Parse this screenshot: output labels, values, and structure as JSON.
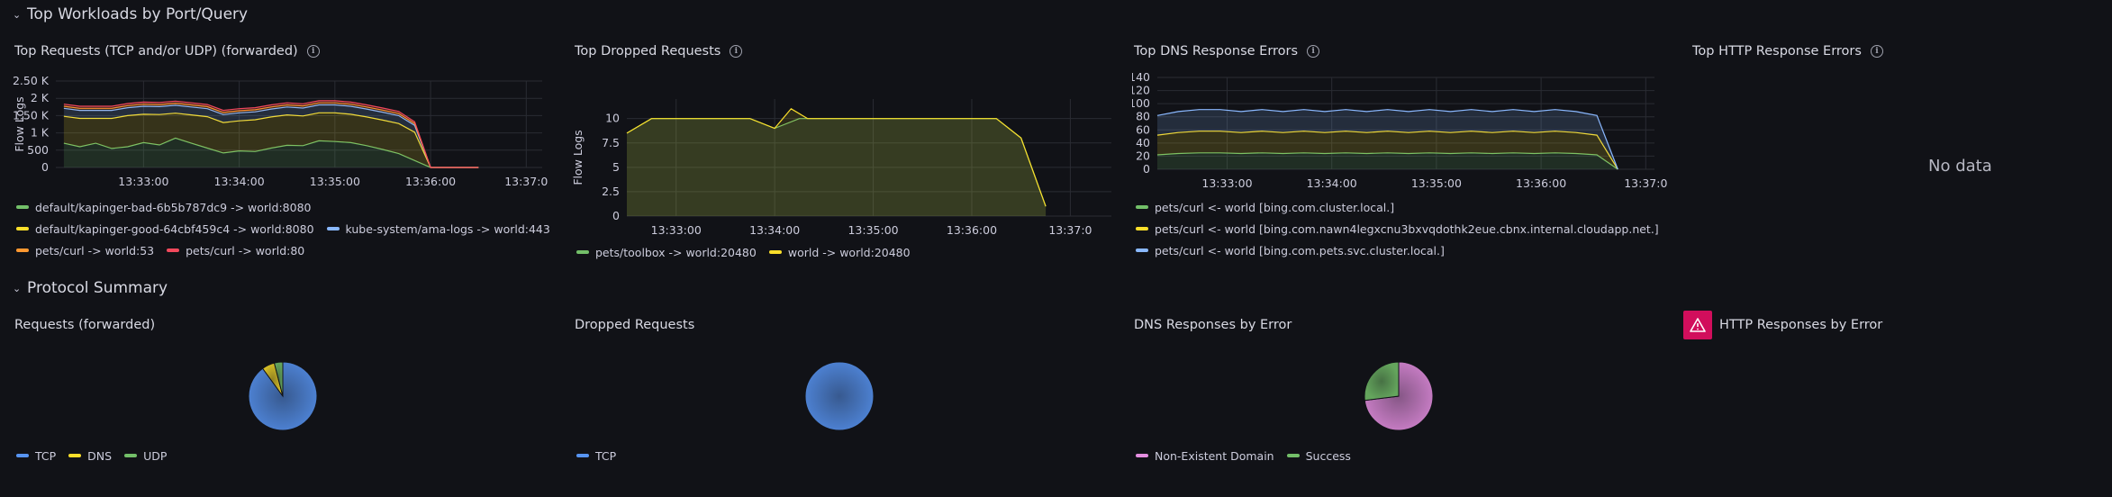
{
  "rows": [
    {
      "title": "Top Workloads by Port/Query"
    },
    {
      "title": "Protocol Summary"
    }
  ],
  "panels": {
    "top_requests": {
      "title": "Top Requests (TCP and/or UDP) (forwarded)",
      "ylabel": "Flow Logs",
      "yticks": [
        "2.50 K",
        "2 K",
        "1.50 K",
        "1 K",
        "500",
        "0"
      ],
      "xticks": [
        "13:33:00",
        "13:34:00",
        "13:35:00",
        "13:36:00",
        "13:37:0"
      ],
      "legend": [
        {
          "label": "default/kapinger-bad-6b5b787dc9 -> world:8080",
          "color": "#73bf69"
        },
        {
          "label": "default/kapinger-good-64cbf459c4 -> world:8080",
          "color": "#fade2a"
        },
        {
          "label": "kube-system/ama-logs -> world:443",
          "color": "#8ab8ff"
        },
        {
          "label": "pets/curl -> world:53",
          "color": "#ff9830"
        },
        {
          "label": "pets/curl -> world:80",
          "color": "#f2495c"
        }
      ]
    },
    "top_dropped": {
      "title": "Top Dropped Requests",
      "ylabel": "Flow Logs",
      "yticks": [
        "10",
        "7.5",
        "5",
        "2.5",
        "0"
      ],
      "xticks": [
        "13:33:00",
        "13:34:00",
        "13:35:00",
        "13:36:00",
        "13:37:0"
      ],
      "legend": [
        {
          "label": "pets/toolbox -> world:20480",
          "color": "#73bf69"
        },
        {
          "label": "world -> world:20480",
          "color": "#fade2a"
        }
      ]
    },
    "top_dns": {
      "title": "Top DNS Response Errors",
      "yticks": [
        "140",
        "120",
        "100",
        "80",
        "60",
        "40",
        "20",
        "0"
      ],
      "xticks": [
        "13:33:00",
        "13:34:00",
        "13:35:00",
        "13:36:00",
        "13:37:0"
      ],
      "legend": [
        {
          "label": "pets/curl <- world [bing.com.cluster.local.]",
          "color": "#73bf69"
        },
        {
          "label": "pets/curl <- world [bing.com.nawn4legxcnu3bxvqdothk2eue.cbnx.internal.cloudapp.net.]",
          "color": "#fade2a"
        },
        {
          "label": "pets/curl <- world [bing.com.pets.svc.cluster.local.]",
          "color": "#8ab8ff"
        }
      ]
    },
    "top_http": {
      "title": "Top HTTP Response Errors",
      "empty_text": "No data"
    },
    "requests_forwarded": {
      "title": "Requests (forwarded)",
      "legend": [
        {
          "label": "TCP",
          "color": "#5794f2"
        },
        {
          "label": "DNS",
          "color": "#fade2a"
        },
        {
          "label": "UDP",
          "color": "#73bf69"
        }
      ]
    },
    "dropped_requests": {
      "title": "Dropped Requests",
      "legend": [
        {
          "label": "TCP",
          "color": "#5794f2"
        }
      ]
    },
    "dns_by_error": {
      "title": "DNS Responses by Error",
      "legend": [
        {
          "label": "Non-Existent Domain",
          "color": "#e48ee0"
        },
        {
          "label": "Success",
          "color": "#73bf69"
        }
      ]
    },
    "http_by_error": {
      "title": "HTTP Responses by Error",
      "icon": "warning-icon"
    }
  },
  "chart_data": [
    {
      "type": "area",
      "title": "Top Requests (TCP and/or UDP) (forwarded)",
      "ylabel": "Flow Logs",
      "ylim": [
        0,
        2500
      ],
      "x": [
        "13:32:10",
        "13:32:20",
        "13:32:30",
        "13:32:40",
        "13:32:50",
        "13:33:00",
        "13:33:10",
        "13:33:20",
        "13:33:30",
        "13:33:40",
        "13:33:50",
        "13:34:00",
        "13:34:10",
        "13:34:20",
        "13:34:30",
        "13:34:40",
        "13:34:50",
        "13:35:00",
        "13:35:10",
        "13:35:20",
        "13:35:30",
        "13:35:40",
        "13:35:50",
        "13:36:00",
        "13:36:10",
        "13:36:20",
        "13:36:30"
      ],
      "stacked": true,
      "series": [
        {
          "name": "default/kapinger-bad-6b5b787dc9 -> world:8080",
          "color": "#73bf69",
          "values": [
            700,
            600,
            700,
            550,
            600,
            720,
            650,
            850,
            700,
            560,
            420,
            480,
            460,
            560,
            640,
            630,
            770,
            750,
            720,
            630,
            520,
            400,
            200,
            0,
            0,
            0,
            0
          ]
        },
        {
          "name": "default/kapinger-good-64cbf459c4 -> world:8080",
          "color": "#fade2a",
          "values": [
            780,
            820,
            720,
            870,
            900,
            820,
            880,
            720,
            820,
            910,
            880,
            870,
            920,
            900,
            880,
            860,
            810,
            830,
            820,
            830,
            850,
            870,
            820,
            0,
            0,
            0,
            0
          ]
        },
        {
          "name": "kube-system/ama-logs -> world:443",
          "color": "#8ab8ff",
          "values": [
            230,
            230,
            230,
            230,
            230,
            230,
            230,
            230,
            230,
            230,
            230,
            230,
            230,
            230,
            230,
            230,
            230,
            230,
            230,
            230,
            230,
            230,
            200,
            0,
            0,
            0,
            0
          ]
        },
        {
          "name": "pets/curl -> world:53",
          "color": "#ff9830",
          "values": [
            60,
            60,
            60,
            60,
            60,
            60,
            60,
            60,
            60,
            60,
            60,
            60,
            60,
            60,
            60,
            60,
            60,
            60,
            60,
            60,
            60,
            60,
            50,
            0,
            0,
            0,
            0
          ]
        },
        {
          "name": "pets/curl -> world:80",
          "color": "#f2495c",
          "values": [
            60,
            60,
            60,
            60,
            60,
            60,
            60,
            60,
            60,
            60,
            60,
            60,
            60,
            60,
            60,
            60,
            60,
            60,
            60,
            60,
            60,
            60,
            50,
            0,
            0,
            0,
            0
          ]
        }
      ]
    },
    {
      "type": "area",
      "title": "Top Dropped Requests",
      "ylabel": "Flow Logs",
      "ylim": [
        0,
        12
      ],
      "series": [
        {
          "name": "pets/toolbox -> world:20480",
          "color": "#73bf69",
          "points": [
            [
              "13:32:30",
              8.5
            ],
            [
              "13:32:45",
              10
            ],
            [
              "13:33:45",
              10
            ],
            [
              "13:34:00",
              9
            ],
            [
              "13:34:15",
              10
            ],
            [
              "13:36:00",
              10
            ],
            [
              "13:36:15",
              10
            ],
            [
              "13:36:30",
              8
            ],
            [
              "13:36:45",
              1
            ]
          ]
        },
        {
          "name": "world -> world:20480",
          "color": "#fade2a",
          "points": [
            [
              "13:32:30",
              8.5
            ],
            [
              "13:32:45",
              10
            ],
            [
              "13:33:45",
              10
            ],
            [
              "13:34:00",
              9
            ],
            [
              "13:34:10",
              11
            ],
            [
              "13:34:20",
              10
            ],
            [
              "13:36:15",
              10
            ],
            [
              "13:36:30",
              8
            ],
            [
              "13:36:45",
              1
            ]
          ]
        }
      ]
    },
    {
      "type": "area",
      "title": "Top DNS Response Errors",
      "ylim": [
        0,
        140
      ],
      "series": [
        {
          "name": "pets/curl <- world [bing.com.cluster.local.]",
          "color": "#73bf69",
          "values": [
            22,
            24,
            25,
            25,
            24,
            25,
            24,
            25,
            24,
            25,
            24,
            25,
            24,
            25,
            24,
            25,
            24,
            25,
            24,
            25,
            24,
            22,
            0
          ]
        },
        {
          "name": "pets/curl <- world [bing.com.nawn4legxcnu3bxvqdothk2eue.cbnx.internal.cloudapp.net.]",
          "color": "#fade2a",
          "values": [
            30,
            32,
            33,
            33,
            32,
            33,
            32,
            33,
            32,
            33,
            32,
            33,
            32,
            33,
            32,
            33,
            32,
            33,
            32,
            33,
            32,
            30,
            0
          ]
        },
        {
          "name": "pets/curl <- world [bing.com.pets.svc.cluster.local.]",
          "color": "#8ab8ff",
          "values": [
            30,
            32,
            33,
            33,
            32,
            33,
            32,
            33,
            32,
            33,
            32,
            33,
            32,
            33,
            32,
            33,
            32,
            33,
            32,
            33,
            32,
            30,
            0
          ]
        }
      ]
    },
    {
      "type": "pie",
      "title": "Requests (forwarded)",
      "labels": [
        "TCP",
        "DNS",
        "UDP"
      ],
      "values": [
        90,
        6,
        4
      ],
      "colors": [
        "#5794f2",
        "#fade2a",
        "#73bf69"
      ]
    },
    {
      "type": "pie",
      "title": "Dropped Requests",
      "labels": [
        "TCP"
      ],
      "values": [
        100
      ],
      "colors": [
        "#5794f2"
      ]
    },
    {
      "type": "pie",
      "title": "DNS Responses by Error",
      "labels": [
        "Non-Existent Domain",
        "Success"
      ],
      "values": [
        73,
        27
      ],
      "colors": [
        "#e48ee0",
        "#73bf69"
      ]
    }
  ]
}
